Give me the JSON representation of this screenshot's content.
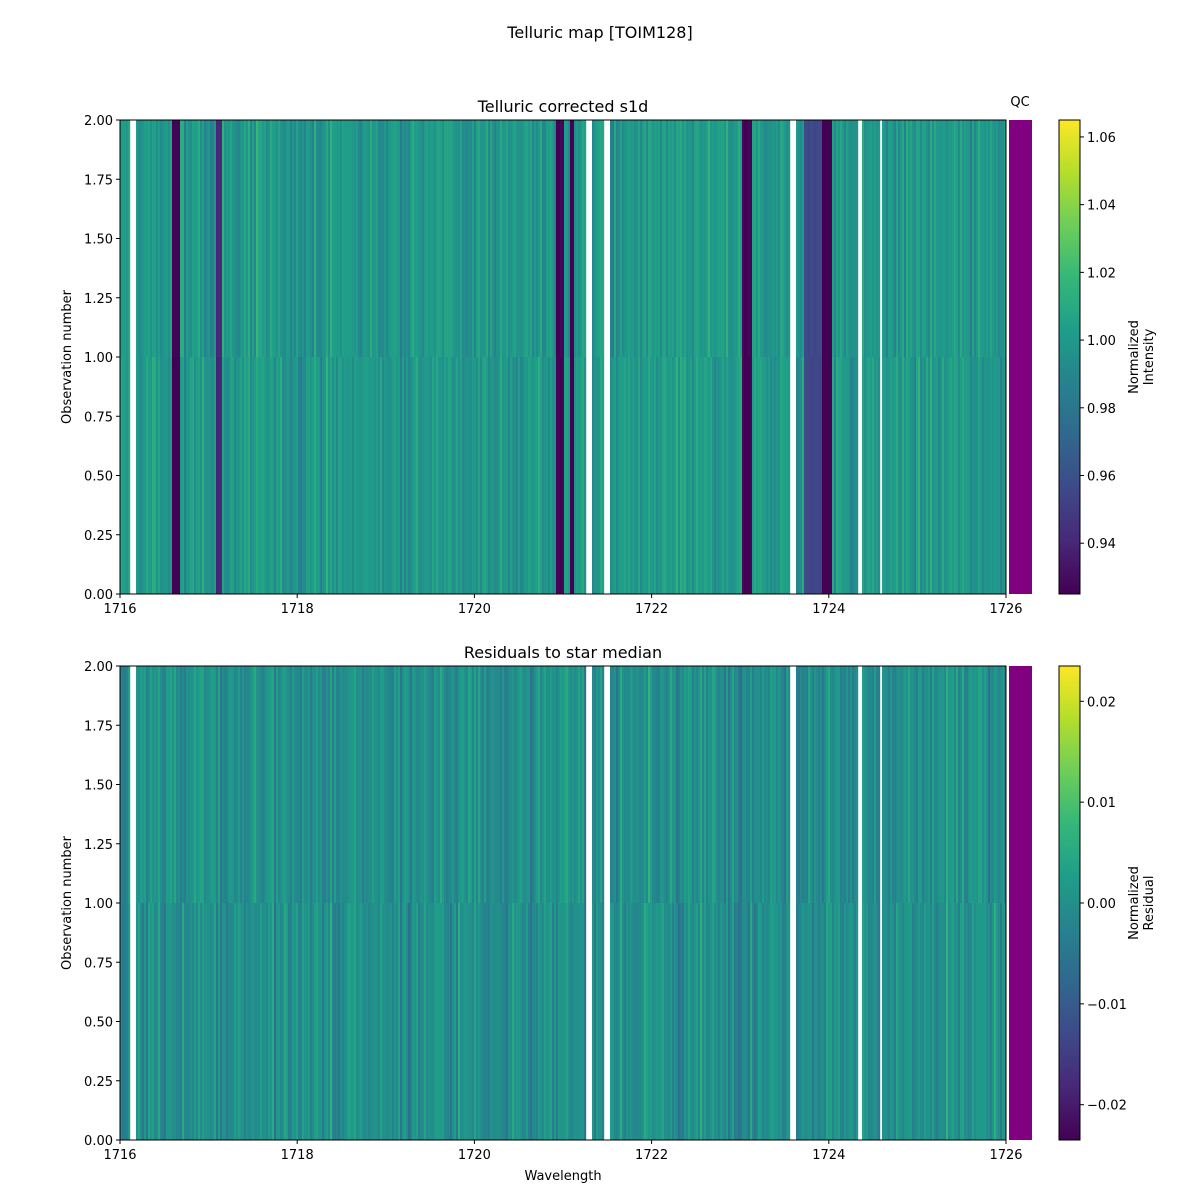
{
  "chart_data": [
    {
      "type": "heatmap",
      "suptitle": "Telluric map [TOIM128]",
      "title": "Telluric corrected s1d",
      "xlabel": "",
      "ylabel": "Observation number",
      "xlim": [
        1716,
        1726
      ],
      "ylim": [
        0,
        2
      ],
      "xticks": [
        "1716",
        "1718",
        "1720",
        "1722",
        "1724",
        "1726"
      ],
      "yticks": [
        "0.00",
        "0.25",
        "0.50",
        "0.75",
        "1.00",
        "1.25",
        "1.50",
        "1.75",
        "2.00"
      ],
      "rows": 2,
      "baseline": 1.0,
      "noise": 0.015,
      "nan_bands": [
        [
          1716.12,
          1716.17
        ],
        [
          1721.27,
          1721.32
        ],
        [
          1721.46,
          1721.52
        ],
        [
          1723.57,
          1723.62
        ],
        [
          1724.34,
          1724.375
        ],
        [
          1724.57,
          1724.61
        ]
      ],
      "absorption_bands": [
        {
          "range": [
            1716.59,
            1716.67
          ],
          "value": 0.925
        },
        {
          "range": [
            1717.08,
            1717.16
          ],
          "value": 0.94
        },
        {
          "range": [
            1720.91,
            1721.0
          ],
          "value": 0.925
        },
        {
          "range": [
            1721.08,
            1721.135
          ],
          "value": 0.925
        },
        {
          "range": [
            1723.03,
            1723.14
          ],
          "value": 0.925
        },
        {
          "range": [
            1723.71,
            1723.92
          ],
          "value": 0.955
        },
        {
          "range": [
            1723.92,
            1724.03
          ],
          "value": 0.925
        }
      ],
      "colorbar": {
        "label": "Normalized\nIntensity",
        "range": [
          0.925,
          1.065
        ],
        "ticks": [
          "0.94",
          "0.96",
          "0.98",
          "1.00",
          "1.02",
          "1.04",
          "1.06"
        ],
        "colormap": "viridis"
      },
      "qc": {
        "label": "QC",
        "color": "#800080"
      }
    },
    {
      "type": "heatmap",
      "title": "Residuals to star median",
      "xlabel": "Wavelength",
      "ylabel": "Observation number",
      "xlim": [
        1716,
        1726
      ],
      "ylim": [
        0,
        2
      ],
      "xticks": [
        "1716",
        "1718",
        "1720",
        "1722",
        "1724",
        "1726"
      ],
      "yticks": [
        "0.00",
        "0.25",
        "0.50",
        "0.75",
        "1.00",
        "1.25",
        "1.50",
        "1.75",
        "2.00"
      ],
      "rows": 2,
      "baseline": 0.0,
      "noise": 0.006,
      "nan_bands": [
        [
          1716.12,
          1716.17
        ],
        [
          1721.27,
          1721.32
        ],
        [
          1721.46,
          1721.52
        ],
        [
          1723.57,
          1723.62
        ],
        [
          1724.33,
          1724.375
        ],
        [
          1724.57,
          1724.61
        ]
      ],
      "absorption_bands": [],
      "colorbar": {
        "label": "Normalized\nResidual",
        "range": [
          -0.0235,
          0.0235
        ],
        "ticks": [
          "−0.02",
          "−0.01",
          "0.00",
          "0.01",
          "0.02"
        ],
        "tick_values": [
          -0.02,
          -0.01,
          0,
          0.01,
          0.02
        ],
        "colormap": "viridis"
      },
      "qc": {
        "label": "",
        "color": "#800080"
      }
    }
  ]
}
